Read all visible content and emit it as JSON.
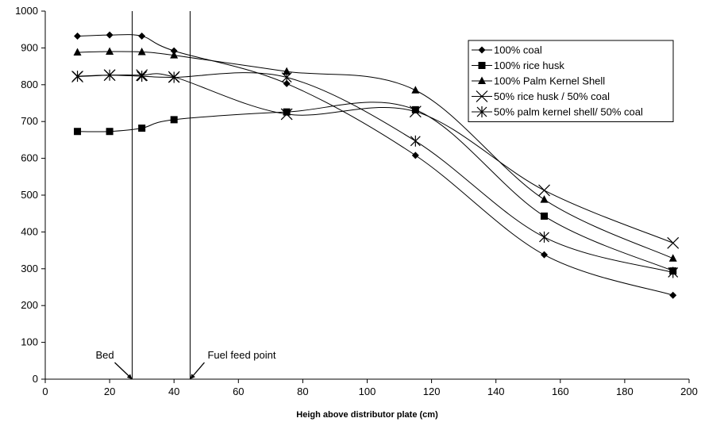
{
  "chart_data": {
    "type": "line",
    "title": "",
    "xlabel": "Heigh above distributor plate (cm)",
    "ylabel": "",
    "xlim": [
      0,
      200
    ],
    "ylim": [
      0,
      1000
    ],
    "xticks": [
      0,
      20,
      40,
      60,
      80,
      100,
      120,
      140,
      160,
      180,
      200
    ],
    "yticks": [
      0,
      100,
      200,
      300,
      400,
      500,
      600,
      700,
      800,
      900,
      1000
    ],
    "grid": false,
    "legend_position": "top-right",
    "series": [
      {
        "name": "100% coal",
        "marker": "diamond",
        "x": [
          10,
          20,
          30,
          40,
          75,
          115,
          155,
          195
        ],
        "y": [
          932,
          935,
          932,
          892,
          803,
          608,
          338,
          228
        ]
      },
      {
        "name": "100% rice husk",
        "marker": "square",
        "x": [
          10,
          20,
          30,
          40,
          75,
          115,
          155,
          195
        ],
        "y": [
          673,
          673,
          682,
          705,
          726,
          732,
          443,
          294
        ]
      },
      {
        "name": "100% Palm Kernel Shell",
        "marker": "triangle",
        "x": [
          10,
          20,
          30,
          40,
          75,
          115,
          155,
          195
        ],
        "y": [
          888,
          890,
          889,
          880,
          836,
          785,
          488,
          328
        ]
      },
      {
        "name": "50% rice husk / 50% coal",
        "marker": "x",
        "x": [
          10,
          20,
          30,
          40,
          75,
          115,
          155,
          195
        ],
        "y": [
          822,
          826,
          826,
          821,
          720,
          727,
          513,
          370
        ]
      },
      {
        "name": "50% palm kernel shell/ 50% coal",
        "marker": "star",
        "x": [
          10,
          20,
          30,
          40,
          75,
          115,
          155,
          195
        ],
        "y": [
          823,
          826,
          823,
          820,
          820,
          647,
          386,
          290
        ]
      }
    ],
    "reference_lines": [
      {
        "x": 27,
        "label": "Bed"
      },
      {
        "x": 45,
        "label": "Fuel feed point"
      }
    ]
  }
}
